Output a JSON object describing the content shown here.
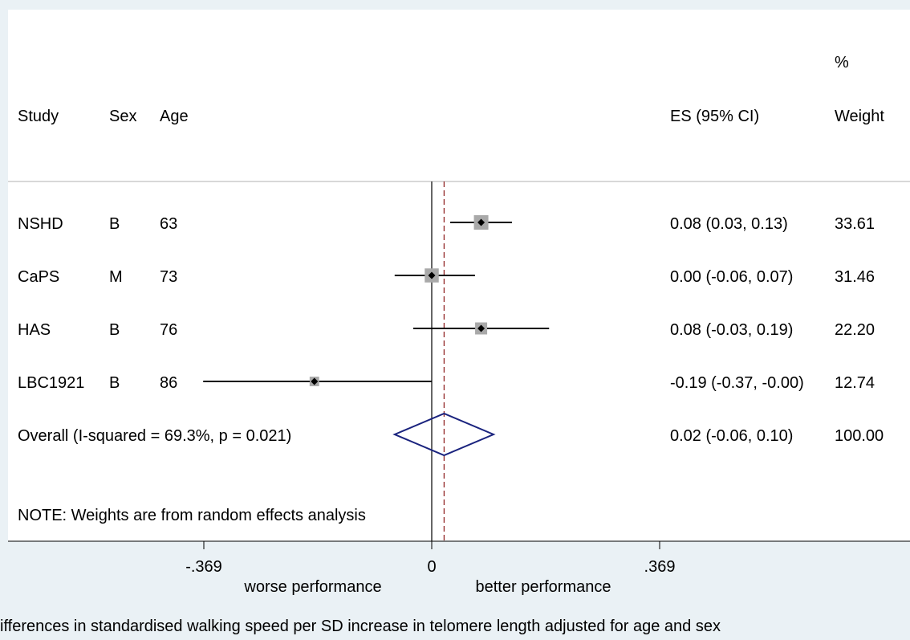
{
  "chart_data": {
    "type": "forest",
    "top_title": "",
    "columns": {
      "study": "Study",
      "sex": "Sex",
      "age": "Age",
      "es": "ES (95% CI)",
      "weight_top": "%",
      "weight": "Weight"
    },
    "studies": [
      {
        "study": "NSHD",
        "sex": "B",
        "age": "63",
        "es": 0.08,
        "lo": 0.03,
        "hi": 0.13,
        "es_text": "0.08 (0.03, 0.13)",
        "weight": 33.61,
        "weight_text": "33.61"
      },
      {
        "study": "CaPS",
        "sex": "M",
        "age": "73",
        "es": 0.0,
        "lo": -0.06,
        "hi": 0.07,
        "es_text": "0.00 (-0.06, 0.07)",
        "weight": 31.46,
        "weight_text": "31.46"
      },
      {
        "study": "HAS",
        "sex": "B",
        "age": "76",
        "es": 0.08,
        "lo": -0.03,
        "hi": 0.19,
        "es_text": "0.08 (-0.03, 0.19)",
        "weight": 22.2,
        "weight_text": "22.20"
      },
      {
        "study": "LBC1921",
        "sex": "B",
        "age": "86",
        "es": -0.19,
        "lo": -0.37,
        "hi": -0.0,
        "es_text": "-0.19 (-0.37, -0.00)",
        "weight": 12.74,
        "weight_text": "12.74"
      }
    ],
    "overall": {
      "label": "Overall  (I-squared = 69.3%, p = 0.021)",
      "es": 0.02,
      "lo": -0.06,
      "hi": 0.1,
      "es_text": "0.02 (-0.06, 0.10)",
      "weight_text": "100.00"
    },
    "note": "NOTE: Weights are from random effects analysis",
    "x_ticks": [
      {
        "value": -0.369,
        "label": "-.369"
      },
      {
        "value": 0,
        "label": "0"
      },
      {
        "value": 0.369,
        "label": ".369"
      }
    ],
    "xlim": [
      -0.369,
      0.369
    ],
    "x_direction_labels": {
      "left": "worse performance",
      "right": "better performance"
    },
    "caption": "ifferences in standardised walking speed per SD increase in telomere length adjusted for age and sex",
    "colors": {
      "background": "#eaf1f5",
      "plot_area": "#ffffff",
      "box": "#a9a9a9",
      "diamond": "#1a237e",
      "overall_line": "#8b1a1a"
    }
  }
}
